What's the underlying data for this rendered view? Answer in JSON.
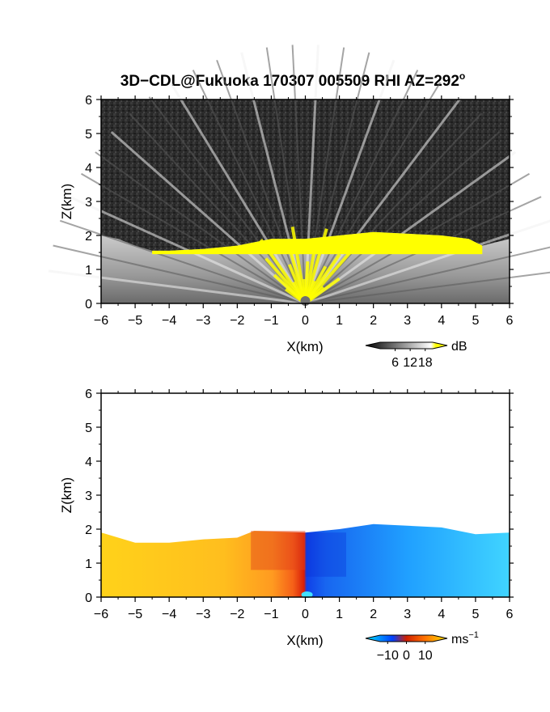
{
  "figure": {
    "title": "3D−CDL@Fukuoka 170307 005509 RHI AZ=292",
    "title_suffix": "o"
  },
  "chart_data": [
    {
      "type": "heatmap",
      "quantity": "reflectivity",
      "xlabel": "X(km)",
      "ylabel": "Z(km)",
      "xlim": [
        -6,
        6
      ],
      "ylim": [
        0,
        6
      ],
      "xticks": [
        "−6",
        "−5",
        "−4",
        "−3",
        "−2",
        "−1",
        "0",
        "1",
        "2",
        "3",
        "4",
        "5",
        "6"
      ],
      "yticks": [
        "0",
        "1",
        "2",
        "3",
        "4",
        "5",
        "6"
      ],
      "colorbar": {
        "unit": "dB",
        "ticks": [
          "6",
          "12",
          "18"
        ],
        "range": [
          0,
          21
        ],
        "colors": [
          "#000000",
          "#ffffff",
          "#ffff00"
        ]
      },
      "echo_top_km": [
        {
          "x": -6.0,
          "z": 2.0
        },
        {
          "x": -5.5,
          "z": 1.9
        },
        {
          "x": -5.0,
          "z": 1.7
        },
        {
          "x": -4.5,
          "z": 1.55
        },
        {
          "x": -4.0,
          "z": 1.55
        },
        {
          "x": -3.0,
          "z": 1.6
        },
        {
          "x": -2.0,
          "z": 1.7
        },
        {
          "x": -1.0,
          "z": 1.9
        },
        {
          "x": 0.0,
          "z": 1.9
        },
        {
          "x": 1.0,
          "z": 2.0
        },
        {
          "x": 2.0,
          "z": 2.1
        },
        {
          "x": 3.0,
          "z": 2.05
        },
        {
          "x": 4.0,
          "z": 2.0
        },
        {
          "x": 4.8,
          "z": 1.9
        },
        {
          "x": 5.2,
          "z": 1.7
        },
        {
          "x": 5.6,
          "z": 1.8
        },
        {
          "x": 6.0,
          "z": 1.9
        }
      ],
      "strong_echo_band_km": {
        "x": [
          -4.5,
          5.2
        ],
        "z": [
          1.45,
          2.1
        ]
      }
    },
    {
      "type": "heatmap",
      "quantity": "doppler velocity",
      "xlabel": "X(km)",
      "ylabel": "Z(km)",
      "xlim": [
        -6,
        6
      ],
      "ylim": [
        0,
        6
      ],
      "xticks": [
        "−6",
        "−5",
        "−4",
        "−3",
        "−2",
        "−1",
        "0",
        "1",
        "2",
        "3",
        "4",
        "5",
        "6"
      ],
      "yticks": [
        "0",
        "1",
        "2",
        "3",
        "4",
        "5",
        "6"
      ],
      "colorbar": {
        "unit": "ms",
        "unit_exp": "−1",
        "ticks": [
          "−10",
          "0",
          "10"
        ],
        "range": [
          -14,
          14
        ],
        "colors": [
          "#00e5ff",
          "#0040ff",
          "#d02000",
          "#ff7000",
          "#ffe000"
        ]
      },
      "velocity_field": [
        {
          "x": -6.0,
          "v": 10
        },
        {
          "x": -4.0,
          "v": 9
        },
        {
          "x": -2.5,
          "v": 7
        },
        {
          "x": -1.5,
          "v": 5
        },
        {
          "x": -0.5,
          "v": 2
        },
        {
          "x": 0.0,
          "v": -3
        },
        {
          "x": 0.5,
          "v": -10
        },
        {
          "x": 2.0,
          "v": -11
        },
        {
          "x": 4.0,
          "v": -12
        },
        {
          "x": 6.0,
          "v": -13
        }
      ],
      "echo_top_km": [
        {
          "x": -6.0,
          "z": 1.9
        },
        {
          "x": -5.0,
          "z": 1.6
        },
        {
          "x": -4.0,
          "z": 1.6
        },
        {
          "x": -3.0,
          "z": 1.7
        },
        {
          "x": -2.0,
          "z": 1.75
        },
        {
          "x": -1.5,
          "z": 1.95
        },
        {
          "x": 0.0,
          "z": 1.9
        },
        {
          "x": 1.0,
          "z": 2.0
        },
        {
          "x": 2.0,
          "z": 2.15
        },
        {
          "x": 3.0,
          "z": 2.1
        },
        {
          "x": 4.0,
          "z": 2.05
        },
        {
          "x": 5.0,
          "z": 1.85
        },
        {
          "x": 6.0,
          "z": 1.9
        }
      ]
    }
  ]
}
